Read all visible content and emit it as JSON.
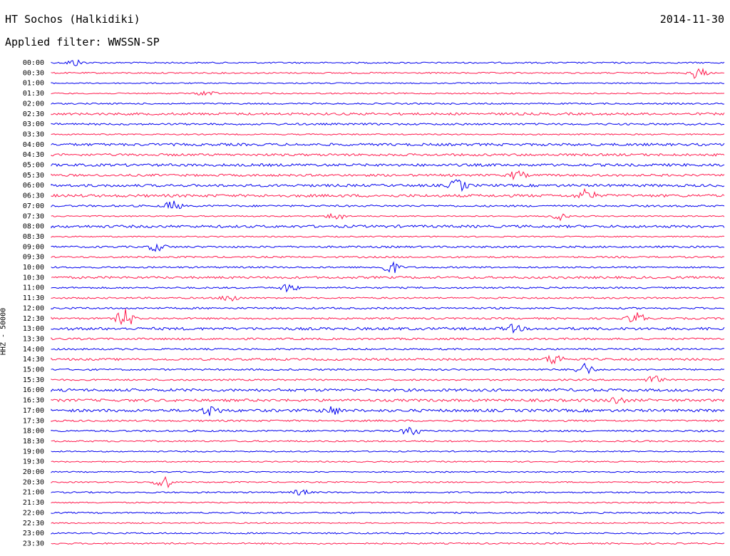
{
  "header": {
    "station": "HT Sochos (Halkidiki)",
    "date": "2014-11-30",
    "filter": "Applied filter: WWSSN-SP"
  },
  "chart_data": {
    "type": "helicorder",
    "ylabel": "HHZ - 50000",
    "colors": [
      "#0000ee",
      "#ff1a4d"
    ],
    "rows": [
      "00:00",
      "00:30",
      "01:00",
      "01:30",
      "02:00",
      "02:30",
      "03:00",
      "03:30",
      "04:00",
      "04:30",
      "05:00",
      "05:30",
      "06:00",
      "06:30",
      "07:00",
      "07:30",
      "08:00",
      "08:30",
      "09:00",
      "09:30",
      "10:00",
      "10:30",
      "11:00",
      "11:30",
      "12:00",
      "12:30",
      "13:00",
      "13:30",
      "14:00",
      "14:30",
      "15:00",
      "15:30",
      "16:00",
      "16:30",
      "17:00",
      "17:30",
      "18:00",
      "18:30",
      "19:00",
      "19:30",
      "20:00",
      "20:30",
      "21:00",
      "21:30",
      "22:00",
      "22:30",
      "23:00",
      "23:30"
    ]
  }
}
